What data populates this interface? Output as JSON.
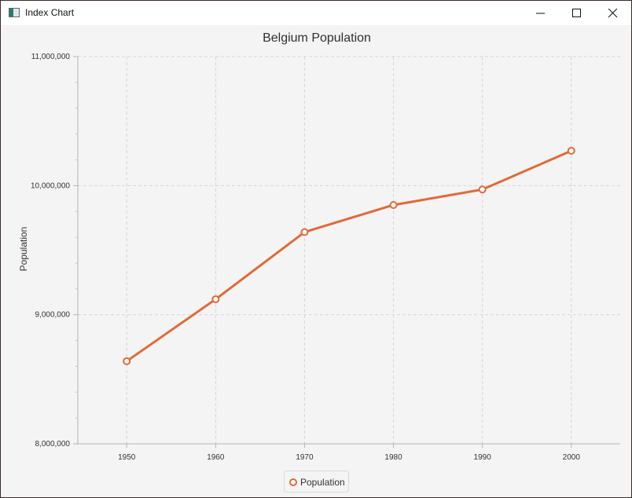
{
  "window": {
    "title": "Index Chart"
  },
  "colors": {
    "series": "#e06a3a",
    "grid": "#d6d6d6",
    "background": "#f4f4f4"
  },
  "icons": {
    "app": "java-window-icon",
    "minimize": "minimize-icon",
    "maximize": "maximize-icon",
    "close": "close-icon"
  },
  "chart_data": {
    "type": "line",
    "title": "Belgium Population",
    "xlabel": "",
    "ylabel": "Population",
    "x": [
      1950,
      1960,
      1970,
      1980,
      1990,
      2000
    ],
    "x_tick_labels": [
      "1950",
      "1960",
      "1970",
      "1980",
      "1990",
      "2000"
    ],
    "xlim": [
      1944.5,
      2005.5
    ],
    "ylim": [
      8000000,
      11000000
    ],
    "y_ticks": [
      8000000,
      9000000,
      10000000,
      11000000
    ],
    "y_tick_labels": [
      "8,000,000",
      "9,000,000",
      "10,000,000",
      "11,000,000"
    ],
    "grid": true,
    "legend": "bottom-center",
    "series": [
      {
        "name": "Population",
        "values": [
          8640000,
          9120000,
          9640000,
          9850000,
          9970000,
          10270000
        ]
      }
    ]
  }
}
